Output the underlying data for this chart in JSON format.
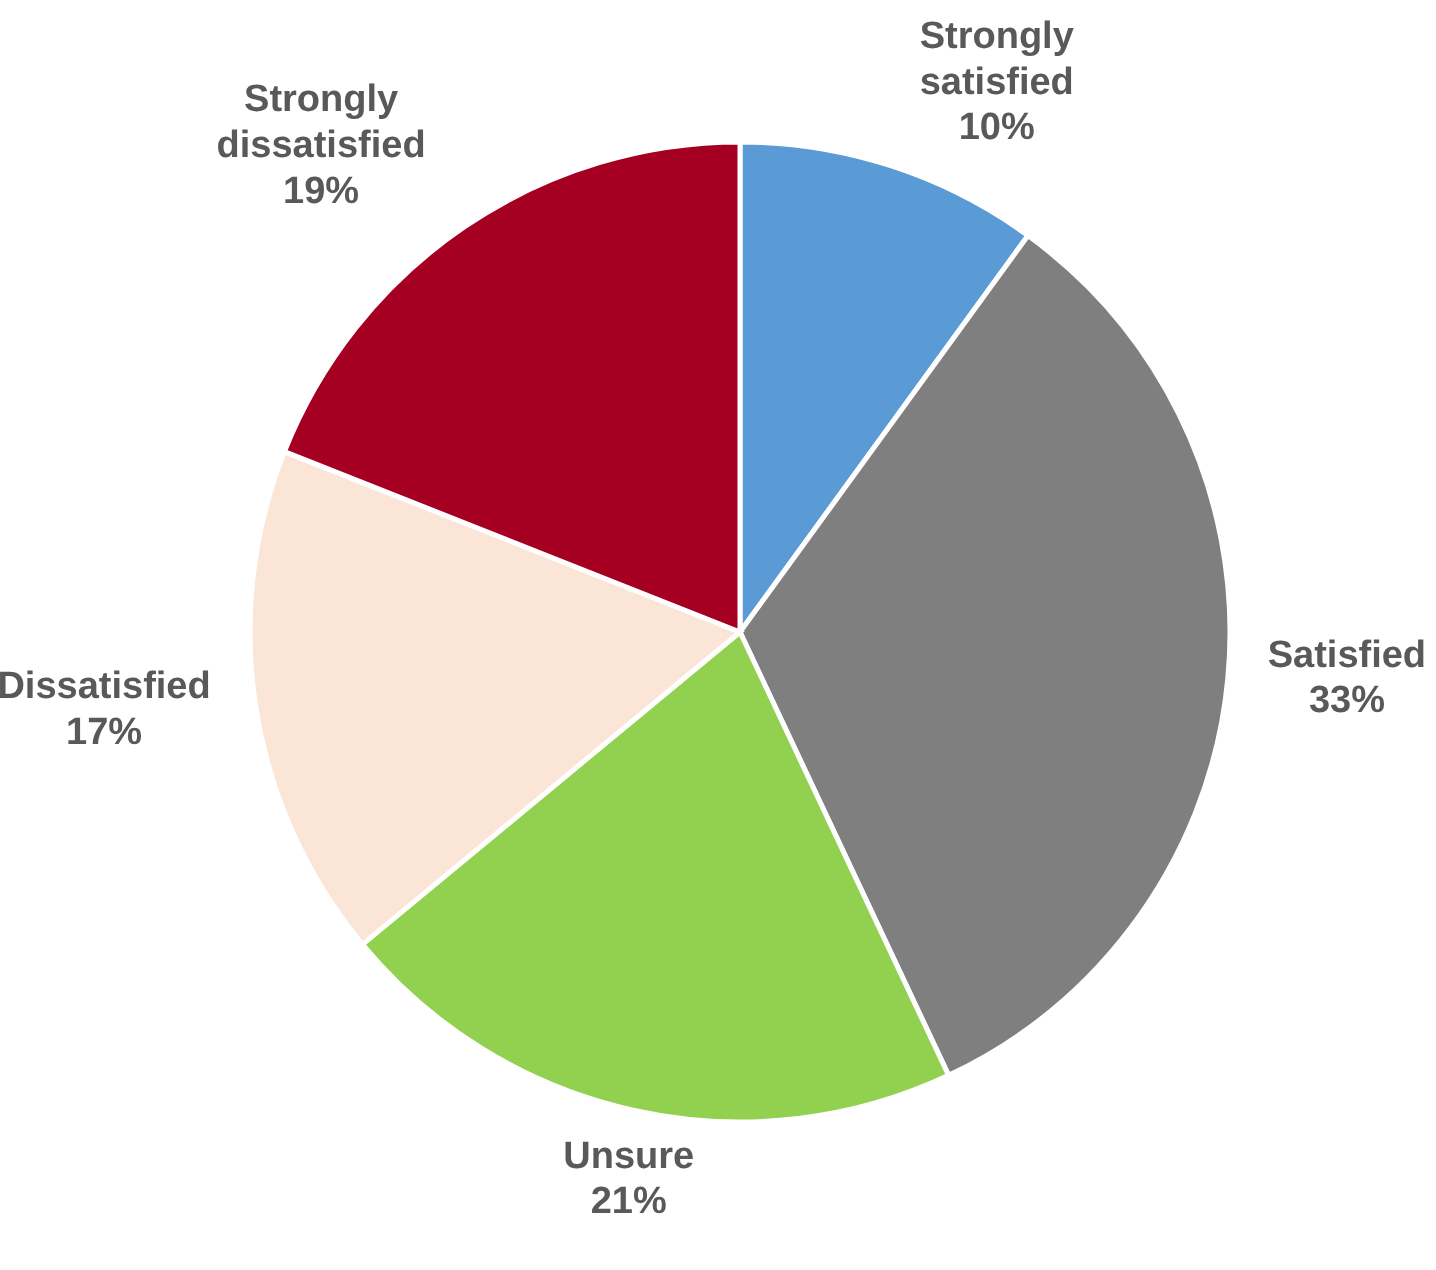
{
  "chart_data": {
    "type": "pie",
    "categories": [
      "Strongly satisfied",
      "Satisfied",
      "Unsure",
      "Dissatisfied",
      "Strongly dissatisfied"
    ],
    "values": [
      10,
      33,
      21,
      17,
      19
    ],
    "colors": [
      "#5b9bd5",
      "#7f7f7f",
      "#92d050",
      "#fbe5d6",
      "#a50021"
    ],
    "value_labels": [
      "10%",
      "33%",
      "21%",
      "17%",
      "19%"
    ]
  }
}
